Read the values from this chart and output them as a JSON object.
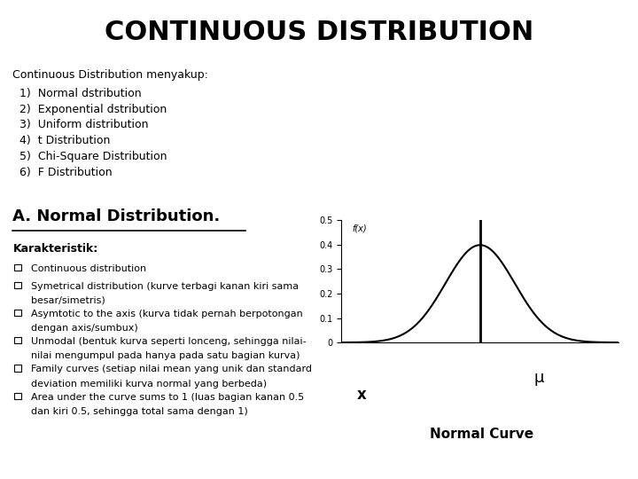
{
  "title": "CONTINUOUS DISTRIBUTION",
  "title_fontsize": 22,
  "title_fontweight": "bold",
  "bg_color": "#ffffff",
  "text_color": "#000000",
  "intro_text": "Continuous Distribution menyakup:",
  "list_items": [
    "1)  Normal dstribution",
    "2)  Exponential dstribution",
    "3)  Uniform distribution",
    "4)  t Distribution",
    "5)  Chi-Square Distribution",
    "6)  F Distribution"
  ],
  "section_title": "A. Normal Distribution.",
  "section_title_fontsize": 13,
  "karakteristik_label": "Karakteristik:",
  "bullet_items": [
    [
      "Continuous distribution"
    ],
    [
      "Symetrical distribution (kurve terbagi kanan kiri sama",
      "besar/simetris)"
    ],
    [
      "Asymtotic to the axis (kurva tidak pernah berpotongan",
      "dengan axis/sumbux)"
    ],
    [
      "Unmodal (bentuk kurva seperti lonceng, sehingga nilai-",
      "nilai mengumpul pada hanya pada satu bagian kurva)"
    ],
    [
      "Family curves (setiap nilai mean yang unik dan standard",
      "deviation memiliki kurva normal yang berbeda)"
    ],
    [
      "Area under the curve sums to 1 (luas bagian kanan 0.5",
      "dan kiri 0.5, sehingga total sama dengan 1)"
    ]
  ],
  "curve_label": "f(x)",
  "x_label": "x",
  "mu_label": "μ",
  "normal_curve_label": "Normal Curve",
  "curve_color": "#000000",
  "plot_bg": "#ffffff",
  "y_ticks": [
    0,
    0.1,
    0.2,
    0.3,
    0.4,
    0.5
  ],
  "intro_fontsize": 9,
  "list_fontsize": 9,
  "bullet_fontsize": 8,
  "karakt_fontsize": 9
}
